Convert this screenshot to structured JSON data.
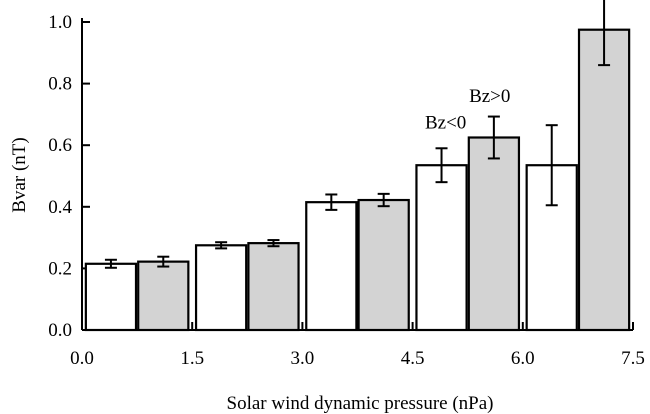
{
  "chart_data": {
    "type": "bar",
    "title": "",
    "xlabel": "Solar wind dynamic pressure (nPa)",
    "ylabel": "Bvar (nT)",
    "xlim": [
      0,
      7.5
    ],
    "ylim": [
      0,
      1.0
    ],
    "x_ticks": [
      "0.0",
      "1.5",
      "3.0",
      "4.5",
      "6.0",
      "7.5"
    ],
    "y_ticks": [
      "0.0",
      "0.2",
      "0.4",
      "0.6",
      "0.8",
      "1.0"
    ],
    "grid": false,
    "bin_edges": [
      [
        0.0,
        1.5
      ],
      [
        1.5,
        3.0
      ],
      [
        3.0,
        4.5
      ],
      [
        4.5,
        6.0
      ],
      [
        6.0,
        7.5
      ]
    ],
    "series": [
      {
        "name": "Bz<0",
        "color": "#ffffff",
        "values": [
          0.215,
          0.275,
          0.415,
          0.535,
          0.535
        ],
        "errors": [
          0.013,
          0.01,
          0.025,
          0.055,
          0.13
        ]
      },
      {
        "name": "Bz>0",
        "color": "#d3d3d3",
        "values": [
          0.222,
          0.282,
          0.422,
          0.625,
          0.975
        ],
        "errors": [
          0.016,
          0.01,
          0.02,
          0.068,
          0.115
        ]
      }
    ],
    "annotations": [
      {
        "text": "Bz<0",
        "x": 4.95,
        "y": 0.655
      },
      {
        "text": "Bz>0",
        "x": 5.55,
        "y": 0.74
      }
    ]
  }
}
